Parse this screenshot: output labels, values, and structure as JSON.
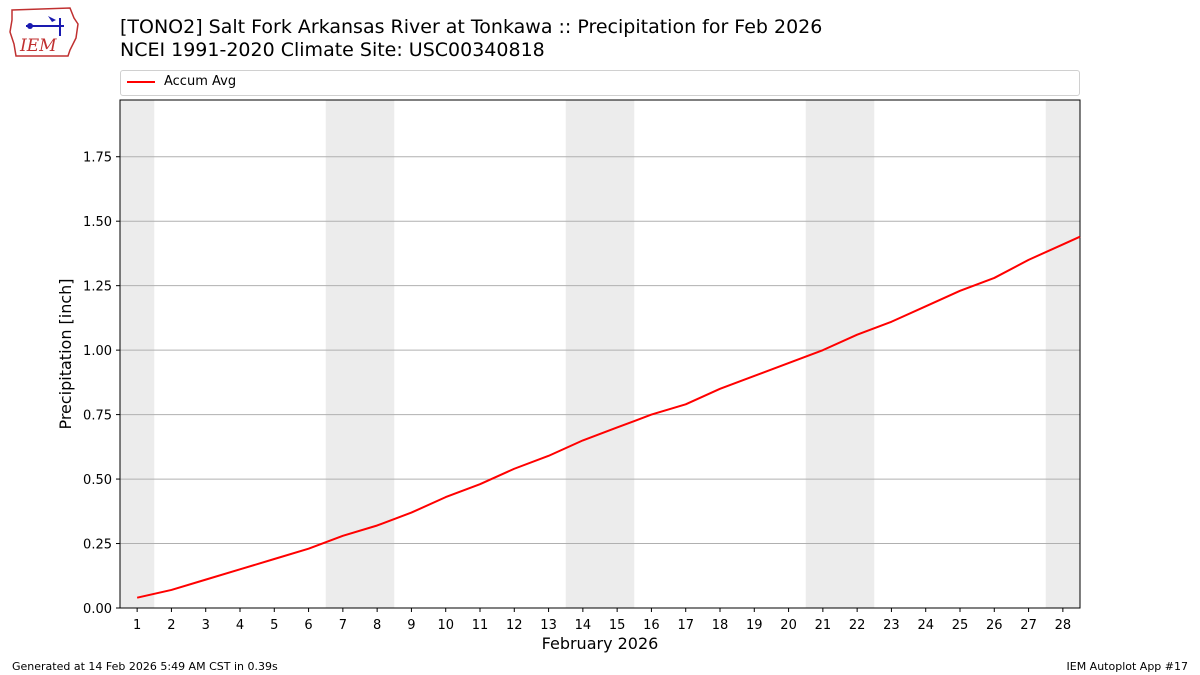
{
  "title_line1": "[TONO2] Salt Fork Arkansas River at Tonkawa :: Precipitation for Feb 2026",
  "title_line2": "NCEI 1991-2020 Climate Site: USC00340818",
  "logo_text": "IEM",
  "footer_left": "Generated at 14 Feb 2026 5:49 AM CST in 0.39s",
  "footer_right": "IEM Autoplot App #17",
  "colors": {
    "series": "#ff0000",
    "weekend_band": "#ececec",
    "grid": "#b0b0b0"
  },
  "chart_data": {
    "type": "line",
    "xlabel": "February 2026",
    "ylabel": "Precipitation [inch]",
    "ylim": [
      0,
      1.97
    ],
    "xlim": [
      0.5,
      28.5
    ],
    "y_ticks": [
      "0.00",
      "0.25",
      "0.50",
      "0.75",
      "1.00",
      "1.25",
      "1.50",
      "1.75"
    ],
    "x_ticks": [
      "1",
      "2",
      "3",
      "4",
      "5",
      "6",
      "7",
      "8",
      "9",
      "10",
      "11",
      "12",
      "13",
      "14",
      "15",
      "16",
      "17",
      "18",
      "19",
      "20",
      "21",
      "22",
      "23",
      "24",
      "25",
      "26",
      "27",
      "28"
    ],
    "grid": "horizontal",
    "legend_placement": "top",
    "weekend_bands": [
      [
        0.5,
        1.5
      ],
      [
        6.5,
        8.5
      ],
      [
        13.5,
        15.5
      ],
      [
        20.5,
        22.5
      ],
      [
        27.5,
        28.5
      ]
    ],
    "series": [
      {
        "name": "Accum Avg",
        "x": [
          1,
          2,
          3,
          4,
          5,
          6,
          7,
          8,
          9,
          10,
          11,
          12,
          13,
          14,
          15,
          16,
          17,
          18,
          19,
          20,
          21,
          22,
          23,
          24,
          25,
          26,
          27,
          28,
          28.5
        ],
        "values": [
          0.04,
          0.07,
          0.11,
          0.15,
          0.19,
          0.23,
          0.28,
          0.32,
          0.37,
          0.43,
          0.48,
          0.54,
          0.59,
          0.65,
          0.7,
          0.75,
          0.79,
          0.85,
          0.9,
          0.95,
          1.0,
          1.06,
          1.11,
          1.17,
          1.23,
          1.28,
          1.35,
          1.41,
          1.44
        ]
      }
    ]
  }
}
